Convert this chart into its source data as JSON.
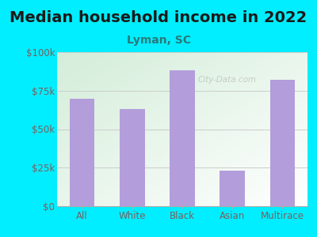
{
  "title": "Median household income in 2022",
  "subtitle": "Lyman, SC",
  "categories": [
    "All",
    "White",
    "Black",
    "Asian",
    "Multirace"
  ],
  "values": [
    70000,
    63000,
    88000,
    23000,
    82000
  ],
  "bar_color": "#b39ddb",
  "background_outer": "#00eeff",
  "background_inner_grad_top": "#d4edda",
  "background_inner_grad_bottom": "#ffffff",
  "title_color": "#1a1a1a",
  "subtitle_color": "#2a7a7a",
  "tick_color": "#7a6060",
  "ytick_labels": [
    "$0",
    "$25k",
    "$50k",
    "$75k",
    "$100k"
  ],
  "ytick_values": [
    0,
    25000,
    50000,
    75000,
    100000
  ],
  "ylim": [
    0,
    100000
  ],
  "title_fontsize": 14,
  "subtitle_fontsize": 10,
  "tick_fontsize": 8.5,
  "watermark": "City-Data.com"
}
